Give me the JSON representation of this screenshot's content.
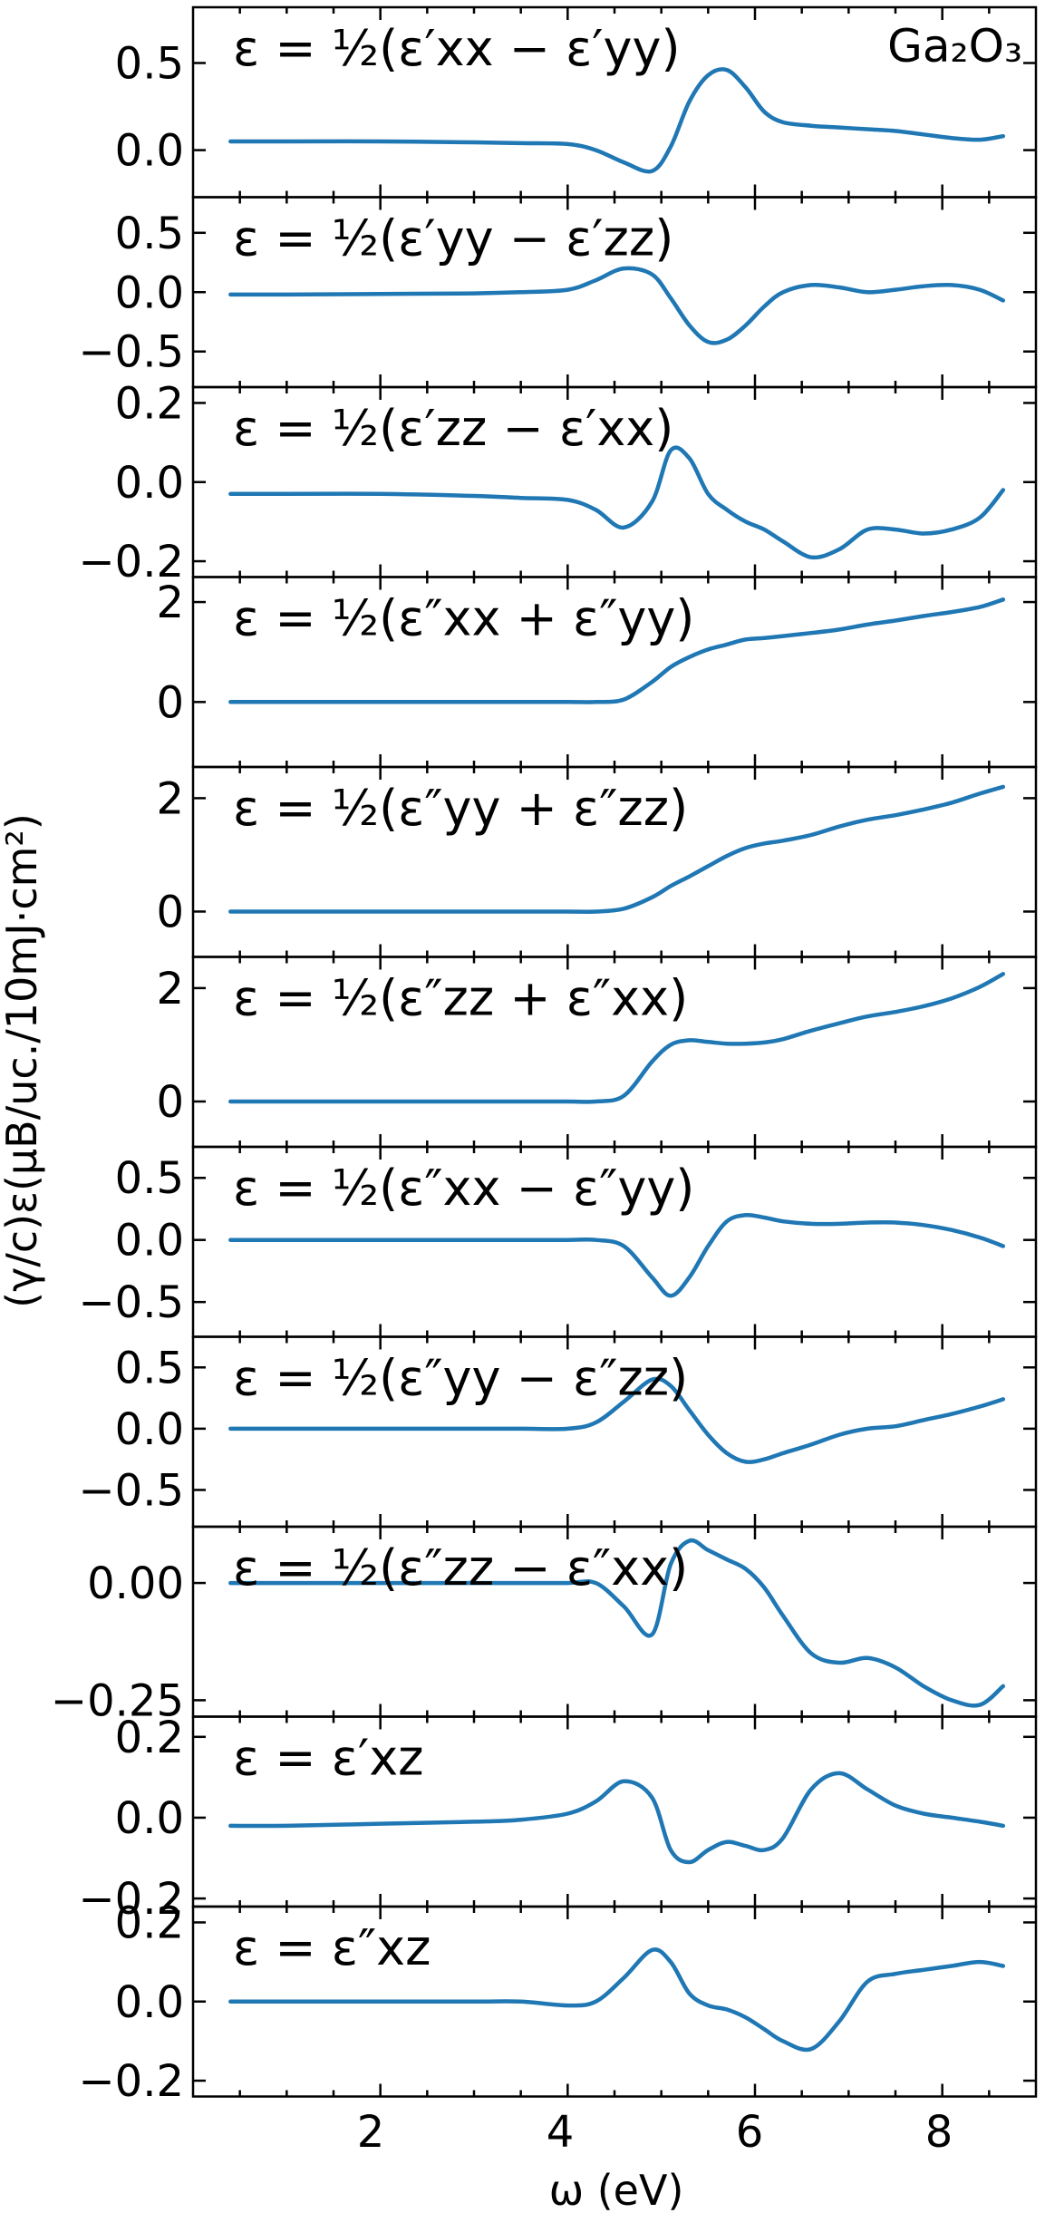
{
  "chart_data": {
    "type": "line",
    "compound_label": "Ga₂O₃",
    "xlabel": "ω (eV)",
    "ylabel": "(γ/c)ε(μB/uc./10mJ·cm²)",
    "xlim": [
      0.0,
      9.0
    ],
    "xticks": [
      2,
      4,
      6,
      8
    ],
    "x": [
      0.4,
      1.0,
      2.0,
      3.0,
      3.5,
      4.0,
      4.3,
      4.6,
      4.9,
      5.1,
      5.3,
      5.5,
      5.7,
      5.9,
      6.1,
      6.3,
      6.6,
      6.9,
      7.2,
      7.5,
      7.8,
      8.1,
      8.4,
      8.65
    ],
    "panels": [
      {
        "label": "ε = ½(ε′xx − ε′yy)",
        "ylim": [
          -0.27,
          0.82
        ],
        "yticks": [
          "0.5",
          "0.0"
        ],
        "ytick_values": [
          0.5,
          0.0
        ],
        "values": [
          0.05,
          0.05,
          0.05,
          0.045,
          0.04,
          0.035,
          0.0,
          -0.07,
          -0.12,
          0.02,
          0.28,
          0.43,
          0.46,
          0.36,
          0.22,
          0.16,
          0.14,
          0.13,
          0.12,
          0.11,
          0.09,
          0.07,
          0.06,
          0.08
        ]
      },
      {
        "label": "ε = ½(ε′yy − ε′zz)",
        "ylim": [
          -0.8,
          0.8
        ],
        "yticks": [
          "0.5",
          "0.0",
          "−0.5"
        ],
        "ytick_values": [
          0.5,
          0.0,
          -0.5
        ],
        "values": [
          -0.02,
          -0.02,
          -0.015,
          -0.01,
          0.0,
          0.02,
          0.1,
          0.2,
          0.15,
          -0.05,
          -0.28,
          -0.42,
          -0.4,
          -0.28,
          -0.12,
          0.0,
          0.06,
          0.04,
          0.0,
          0.02,
          0.05,
          0.06,
          0.02,
          -0.07
        ]
      },
      {
        "label": "ε = ½(ε′zz − ε′xx)",
        "ylim": [
          -0.24,
          0.24
        ],
        "yticks": [
          "0.2",
          "0.0",
          "−0.2"
        ],
        "ytick_values": [
          0.2,
          0.0,
          -0.2
        ],
        "values": [
          -0.03,
          -0.03,
          -0.03,
          -0.035,
          -0.04,
          -0.045,
          -0.07,
          -0.115,
          -0.05,
          0.08,
          0.06,
          -0.03,
          -0.07,
          -0.1,
          -0.12,
          -0.15,
          -0.19,
          -0.17,
          -0.12,
          -0.12,
          -0.13,
          -0.12,
          -0.09,
          -0.02
        ]
      },
      {
        "label": "ε = ½(ε″xx + ε″yy)",
        "ylim": [
          -1.3,
          2.5
        ],
        "yticks": [
          "2",
          "0"
        ],
        "ytick_values": [
          2,
          0
        ],
        "values": [
          0.0,
          0.0,
          0.0,
          0.0,
          0.0,
          0.0,
          0.0,
          0.05,
          0.4,
          0.7,
          0.9,
          1.05,
          1.15,
          1.25,
          1.28,
          1.32,
          1.38,
          1.45,
          1.55,
          1.63,
          1.72,
          1.8,
          1.9,
          2.05
        ]
      },
      {
        "label": "ε = ½(ε″yy + ε″zz)",
        "ylim": [
          -0.8,
          2.55
        ],
        "yticks": [
          "2",
          "0"
        ],
        "ytick_values": [
          2,
          0
        ],
        "values": [
          0.0,
          0.0,
          0.0,
          0.0,
          0.0,
          0.0,
          0.0,
          0.05,
          0.25,
          0.45,
          0.62,
          0.8,
          0.98,
          1.12,
          1.2,
          1.25,
          1.35,
          1.5,
          1.62,
          1.7,
          1.8,
          1.92,
          2.08,
          2.2
        ]
      },
      {
        "label": "ε = ½(ε″zz + ε″xx)",
        "ylim": [
          -0.8,
          2.55
        ],
        "yticks": [
          "2",
          "0"
        ],
        "ytick_values": [
          2,
          0
        ],
        "values": [
          0.0,
          0.0,
          0.0,
          0.0,
          0.0,
          0.0,
          0.0,
          0.1,
          0.7,
          1.0,
          1.08,
          1.05,
          1.02,
          1.02,
          1.04,
          1.1,
          1.25,
          1.38,
          1.5,
          1.58,
          1.68,
          1.82,
          2.02,
          2.25
        ]
      },
      {
        "label": "ε = ½(ε″xx − ε″yy)",
        "ylim": [
          -0.78,
          0.75
        ],
        "yticks": [
          "0.5",
          "0.0",
          "−0.5"
        ],
        "ytick_values": [
          0.5,
          0.0,
          -0.5
        ],
        "values": [
          0.0,
          0.0,
          0.0,
          0.0,
          0.0,
          0.0,
          0.0,
          -0.05,
          -0.3,
          -0.45,
          -0.3,
          -0.05,
          0.15,
          0.2,
          0.18,
          0.15,
          0.13,
          0.13,
          0.14,
          0.14,
          0.12,
          0.08,
          0.02,
          -0.05
        ]
      },
      {
        "label": "ε = ½(ε″yy − ε″zz)",
        "ylim": [
          -0.8,
          0.75
        ],
        "yticks": [
          "0.5",
          "0.0",
          "−0.5"
        ],
        "ytick_values": [
          0.5,
          0.0,
          -0.5
        ],
        "values": [
          0.0,
          0.0,
          0.0,
          0.0,
          0.0,
          0.0,
          0.05,
          0.22,
          0.4,
          0.35,
          0.15,
          -0.05,
          -0.2,
          -0.27,
          -0.25,
          -0.2,
          -0.13,
          -0.05,
          0.0,
          0.02,
          0.07,
          0.12,
          0.18,
          0.24
        ]
      },
      {
        "label": "ε = ½(ε″zz − ε″xx)",
        "ylim": [
          -0.285,
          0.12
        ],
        "yticks": [
          "0.00",
          "−0.25"
        ],
        "ytick_values": [
          0.0,
          -0.25
        ],
        "values": [
          0.0,
          0.0,
          0.0,
          0.0,
          0.0,
          0.0,
          0.0,
          -0.05,
          -0.11,
          0.04,
          0.09,
          0.07,
          0.05,
          0.03,
          -0.01,
          -0.07,
          -0.15,
          -0.17,
          -0.16,
          -0.18,
          -0.22,
          -0.25,
          -0.26,
          -0.22
        ]
      },
      {
        "label": "ε = ε′xz",
        "ylim": [
          -0.22,
          0.25
        ],
        "yticks": [
          "0.2",
          "0.0",
          "−0.2"
        ],
        "ytick_values": [
          0.2,
          0.0,
          -0.2
        ],
        "values": [
          -0.02,
          -0.02,
          -0.015,
          -0.01,
          -0.005,
          0.01,
          0.04,
          0.09,
          0.05,
          -0.08,
          -0.11,
          -0.08,
          -0.06,
          -0.07,
          -0.08,
          -0.05,
          0.07,
          0.11,
          0.07,
          0.03,
          0.01,
          0.0,
          -0.01,
          -0.02
        ]
      },
      {
        "label": "ε = ε″xz",
        "ylim": [
          -0.24,
          0.24
        ],
        "yticks": [
          "0.2",
          "0.0",
          "−0.2"
        ],
        "ytick_values": [
          0.2,
          0.0,
          -0.2
        ],
        "values": [
          0.0,
          0.0,
          0.0,
          0.0,
          0.0,
          -0.01,
          0.0,
          0.06,
          0.13,
          0.1,
          0.02,
          -0.01,
          -0.02,
          -0.04,
          -0.07,
          -0.1,
          -0.12,
          -0.05,
          0.05,
          0.07,
          0.08,
          0.09,
          0.1,
          0.09
        ]
      }
    ]
  }
}
